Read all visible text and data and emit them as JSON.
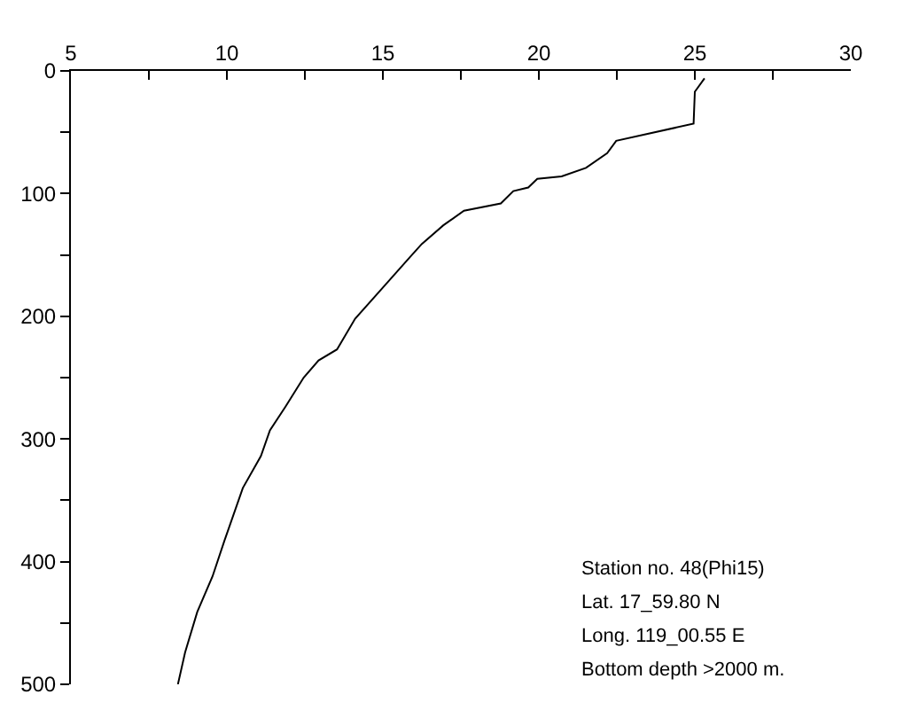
{
  "chart_data": {
    "type": "line",
    "x": [
      25.31,
      25.0,
      24.96,
      22.48,
      22.19,
      21.51,
      20.73,
      19.95,
      19.66,
      19.18,
      18.78,
      17.6,
      16.93,
      16.25,
      15.86,
      15.09,
      14.11,
      13.53,
      12.94,
      12.46,
      11.87,
      11.38,
      11.09,
      10.51,
      9.92,
      9.54,
      9.05,
      8.66,
      8.43
    ],
    "series": [
      {
        "color": "#000000",
        "values": [
          6,
          17,
          43,
          57,
          67,
          79,
          86,
          88,
          95,
          98,
          108,
          114,
          126,
          141,
          152,
          174,
          202,
          227,
          236,
          250,
          274,
          293,
          314,
          340,
          383,
          412,
          441,
          474,
          500
        ]
      }
    ],
    "xlim": [
      5,
      30
    ],
    "xticks": [
      5,
      {
        "value": 7.5,
        "label": null
      },
      10,
      {
        "value": 12.5,
        "label": null
      },
      15,
      {
        "value": 17.5,
        "label": null
      },
      20,
      {
        "value": 22.5,
        "label": null
      },
      25,
      {
        "value": 27.5,
        "label": null
      },
      30
    ],
    "ylim": [
      500,
      0
    ],
    "yticks": [
      0,
      {
        "value": 50,
        "label": null
      },
      100,
      {
        "value": 150,
        "label": null
      },
      200,
      {
        "value": 250,
        "label": null
      },
      300,
      {
        "value": 350,
        "label": null
      },
      400,
      {
        "value": 450,
        "label": null
      },
      500
    ],
    "annotations": [
      "Station no. 48(Phi15)",
      "Lat. 17_59.80 N",
      "Long. 119_00.55 E",
      "Bottom depth >2000 m."
    ],
    "legend": false,
    "marker": "none",
    "line_style": "solid"
  }
}
